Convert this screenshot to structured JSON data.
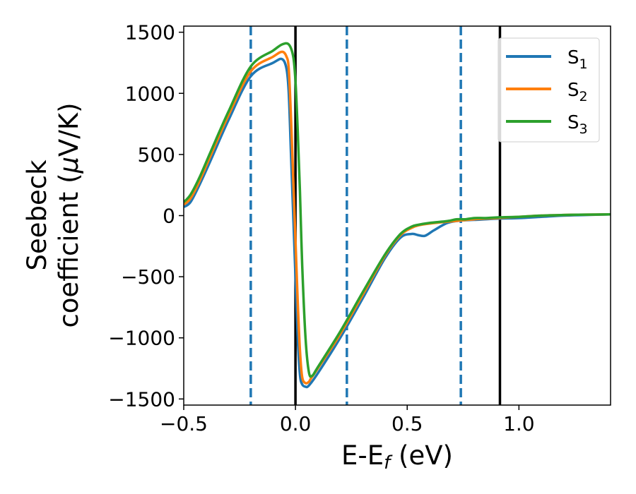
{
  "chart_data": {
    "type": "line",
    "xlabel": {
      "main": "E-E",
      "sub": "f",
      "rest": " (eV)"
    },
    "ylabel": {
      "line1": "Seebeck",
      "line2": "coefficient  (",
      "mu": "μ",
      "line2_rest": "V/K)"
    },
    "xlim": [
      -0.5,
      1.41
    ],
    "ylim": [
      -1550,
      1550
    ],
    "x_ticks": [
      -0.5,
      0.0,
      0.5,
      1.0
    ],
    "x_tick_labels": [
      "−0.5",
      "0.0",
      "0.5",
      "1.0"
    ],
    "y_ticks": [
      -1500,
      -1000,
      -500,
      0,
      500,
      1000,
      1500
    ],
    "y_tick_labels": [
      "−1500",
      "−1000",
      "−500",
      "0",
      "500",
      "1000",
      "1500"
    ],
    "grid": false,
    "legend_position": "top-right",
    "vertical_lines": [
      {
        "x": -0.2,
        "style": "dashed",
        "color": "#1f77b4"
      },
      {
        "x": 0.0,
        "style": "solid",
        "color": "#000000"
      },
      {
        "x": 0.23,
        "style": "dashed",
        "color": "#1f77b4"
      },
      {
        "x": 0.74,
        "style": "dashed",
        "color": "#1f77b4"
      },
      {
        "x": 0.915,
        "style": "solid",
        "color": "#000000"
      }
    ],
    "series": [
      {
        "name": "S",
        "sub": "1",
        "color": "#1f77b4",
        "x": [
          -0.5,
          -0.47,
          -0.43,
          -0.38,
          -0.3,
          -0.2,
          -0.1,
          -0.06,
          -0.04,
          -0.03,
          -0.02,
          -0.01,
          0.0,
          0.01,
          0.02,
          0.03,
          0.045,
          0.06,
          0.1,
          0.2,
          0.3,
          0.4,
          0.47,
          0.52,
          0.55,
          0.58,
          0.62,
          0.68,
          0.74,
          0.8,
          0.9,
          1.0,
          1.1,
          1.2,
          1.3,
          1.41
        ],
        "y": [
          70,
          110,
          250,
          450,
          780,
          1140,
          1250,
          1280,
          1200,
          1000,
          500,
          0,
          -500,
          -1000,
          -1300,
          -1380,
          -1400,
          -1390,
          -1290,
          -1000,
          -680,
          -350,
          -180,
          -150,
          -160,
          -165,
          -120,
          -60,
          -40,
          -35,
          -25,
          -20,
          -10,
          0,
          5,
          10
        ]
      },
      {
        "name": "S",
        "sub": "2",
        "color": "#ff7f0e",
        "x": [
          -0.5,
          -0.47,
          -0.43,
          -0.38,
          -0.3,
          -0.2,
          -0.1,
          -0.06,
          -0.04,
          -0.03,
          -0.02,
          -0.01,
          0.0,
          0.01,
          0.02,
          0.03,
          0.045,
          0.06,
          0.07,
          0.1,
          0.2,
          0.3,
          0.4,
          0.47,
          0.52,
          0.55,
          0.6,
          0.68,
          0.74,
          0.8,
          0.9,
          1.0,
          1.1,
          1.2,
          1.3,
          1.41
        ],
        "y": [
          90,
          140,
          280,
          490,
          820,
          1180,
          1300,
          1340,
          1300,
          1200,
          800,
          300,
          -200,
          -700,
          -1100,
          -1320,
          -1370,
          -1360,
          -1330,
          -1250,
          -970,
          -650,
          -330,
          -160,
          -100,
          -80,
          -65,
          -50,
          -40,
          -30,
          -20,
          -10,
          0,
          5,
          8,
          10
        ]
      },
      {
        "name": "S",
        "sub": "3",
        "color": "#2ca02c",
        "x": [
          -0.5,
          -0.47,
          -0.43,
          -0.38,
          -0.3,
          -0.2,
          -0.1,
          -0.06,
          -0.03,
          -0.01,
          0.0,
          0.01,
          0.02,
          0.03,
          0.045,
          0.06,
          0.075,
          0.1,
          0.2,
          0.3,
          0.4,
          0.47,
          0.52,
          0.55,
          0.6,
          0.68,
          0.72,
          0.76,
          0.8,
          0.85,
          0.9,
          1.0,
          1.1,
          1.2,
          1.3,
          1.41
        ],
        "y": [
          110,
          170,
          310,
          520,
          850,
          1220,
          1350,
          1400,
          1400,
          1300,
          1100,
          700,
          200,
          -400,
          -1000,
          -1280,
          -1310,
          -1240,
          -950,
          -630,
          -320,
          -150,
          -90,
          -75,
          -60,
          -45,
          -30,
          -30,
          -20,
          -20,
          -15,
          -10,
          0,
          5,
          8,
          10
        ]
      }
    ]
  }
}
